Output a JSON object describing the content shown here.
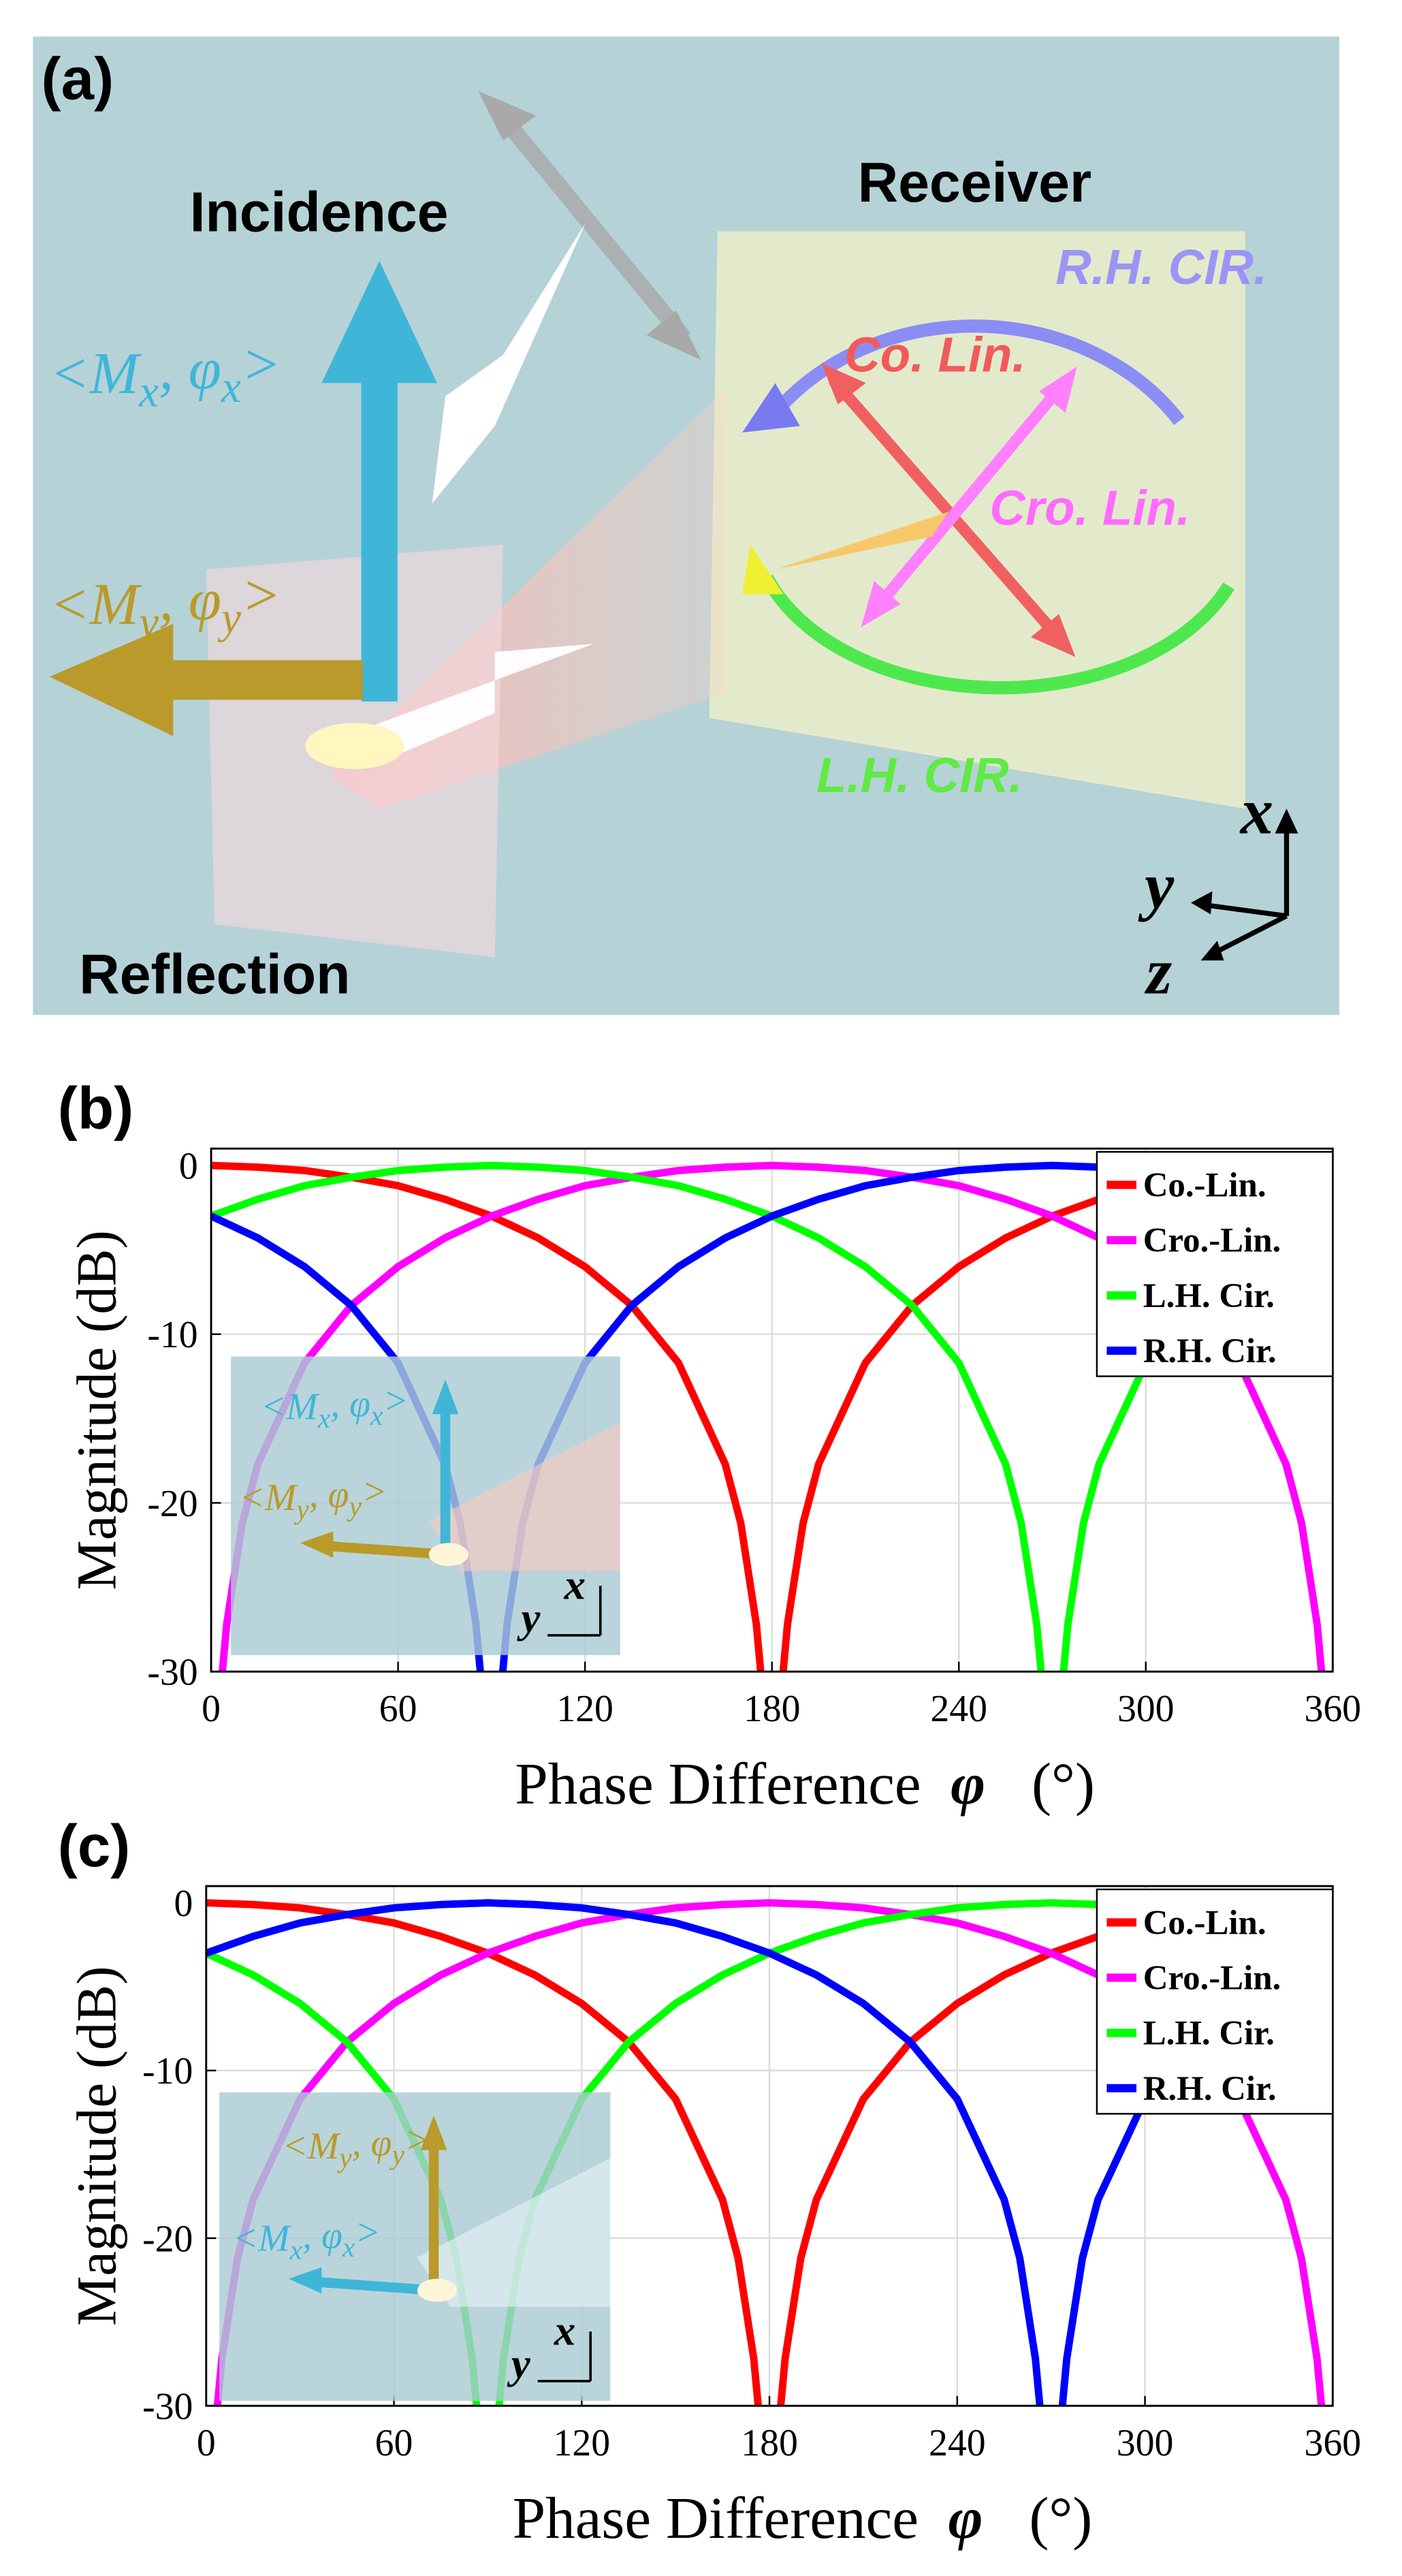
{
  "diagram": {
    "panel_label": "(a)",
    "incidence": "Incidence",
    "receiver": "Receiver",
    "reflection": "Reflection",
    "rh_cir": "R.H. CIR.",
    "co_lin": "Co. Lin.",
    "cro_lin": "Cro. Lin.",
    "lh_cir": "L.H. CIR.",
    "mx": [
      {
        "text": "<M"
      },
      {
        "text": "x",
        "sub": true
      },
      {
        "text": ", φ"
      },
      {
        "text": "x",
        "sub": true
      },
      {
        "text": ">"
      }
    ],
    "my": [
      {
        "text": "<M"
      },
      {
        "text": "y",
        "sub": true
      },
      {
        "text": ", φ"
      },
      {
        "text": "y",
        "sub": true
      },
      {
        "text": ">"
      }
    ],
    "axes": [
      "x",
      "y",
      "z"
    ]
  },
  "chart_data": [
    {
      "type": "line",
      "panel_label": "(b)",
      "y_label": "Magnitude (dB)",
      "x_label": "Phase Difference",
      "x_symbol": "φ",
      "x_unit": "(°)",
      "xlim": [
        0,
        360
      ],
      "xticks": [
        0,
        60,
        120,
        180,
        240,
        300,
        360
      ],
      "ylim": [
        -30,
        1
      ],
      "yticks": [
        -30,
        -20,
        -10,
        0
      ],
      "grid": true,
      "legend": "upper right",
      "series": [
        {
          "name": "Co.-Lin.",
          "color": "#ff0000",
          "x": [
            0,
            15,
            30,
            45,
            60,
            75,
            90,
            105,
            120,
            135,
            150,
            165,
            170,
            175,
            176.4,
            180,
            183.6,
            185,
            190,
            195,
            210,
            225,
            240,
            255,
            270,
            285,
            300,
            315,
            330,
            345,
            360
          ],
          "values": [
            0,
            -0.1,
            -0.3,
            -0.7,
            -1.2,
            -2.0,
            -3.0,
            -4.3,
            -6.0,
            -8.3,
            -11.7,
            -17.7,
            -21.2,
            -27.2,
            -30,
            null,
            -30,
            -27.2,
            -21.2,
            -17.7,
            -11.7,
            -8.3,
            -6.0,
            -4.3,
            -3.0,
            -2.0,
            -1.2,
            -0.7,
            -0.3,
            -0.1,
            0
          ]
        },
        {
          "name": "Cro.-Lin.",
          "color": "#ff00ff",
          "x": [
            0,
            3.6,
            5,
            10,
            15,
            30,
            45,
            60,
            75,
            90,
            105,
            120,
            135,
            150,
            165,
            180,
            195,
            210,
            225,
            240,
            255,
            270,
            285,
            300,
            315,
            330,
            345,
            350,
            355,
            356.4,
            360
          ],
          "values": [
            null,
            -30,
            -27.2,
            -21.2,
            -17.7,
            -11.7,
            -8.3,
            -6.0,
            -4.3,
            -3.0,
            -2.0,
            -1.2,
            -0.7,
            -0.3,
            -0.1,
            0,
            -0.1,
            -0.3,
            -0.7,
            -1.2,
            -2.0,
            -3.0,
            -4.3,
            -6.0,
            -8.3,
            -11.7,
            -17.7,
            -21.2,
            -27.2,
            -30,
            null
          ]
        },
        {
          "name": "L.H. Cir.",
          "color": "#00ff00",
          "x": [
            0,
            15,
            30,
            45,
            60,
            75,
            90,
            105,
            120,
            135,
            150,
            165,
            180,
            195,
            210,
            225,
            240,
            255,
            260,
            265,
            266.4,
            270,
            273.6,
            275,
            280,
            285,
            300,
            315,
            330,
            345,
            360
          ],
          "values": [
            -3.0,
            -2.0,
            -1.2,
            -0.7,
            -0.3,
            -0.1,
            0,
            -0.1,
            -0.3,
            -0.7,
            -1.2,
            -2.0,
            -3.0,
            -4.3,
            -6.0,
            -8.3,
            -11.7,
            -17.7,
            -21.2,
            -27.2,
            -30,
            null,
            -30,
            -27.2,
            -21.2,
            -17.7,
            -11.7,
            -8.3,
            -6.0,
            -4.3,
            -3.0
          ]
        },
        {
          "name": "R.H. Cir.",
          "color": "#0000ff",
          "x": [
            0,
            15,
            30,
            45,
            60,
            75,
            80,
            85,
            86.4,
            90,
            93.6,
            95,
            100,
            105,
            120,
            135,
            150,
            165,
            180,
            195,
            210,
            225,
            240,
            255,
            270,
            285,
            300,
            315,
            330,
            345,
            360
          ],
          "values": [
            -3.0,
            -4.3,
            -6.0,
            -8.3,
            -11.7,
            -17.7,
            -21.2,
            -27.2,
            -30,
            null,
            -30,
            -27.2,
            -21.2,
            -17.7,
            -11.7,
            -8.3,
            -6.0,
            -4.3,
            -3.0,
            -2.0,
            -1.2,
            -0.7,
            -0.3,
            -0.1,
            0,
            -0.1,
            -0.3,
            -0.7,
            -1.2,
            -2.0,
            -3.0
          ]
        }
      ],
      "inset": {
        "labels": [
          [
            {
              "text": "<M"
            },
            {
              "text": "x",
              "sub": true
            },
            {
              "text": ", φ"
            },
            {
              "text": "x",
              "sub": true
            },
            {
              "text": ">"
            }
          ],
          [
            {
              "text": "<M"
            },
            {
              "text": "y",
              "sub": true
            },
            {
              "text": ", φ"
            },
            {
              "text": "y",
              "sub": true
            },
            {
              "text": ">"
            }
          ]
        ],
        "axes": [
          "x",
          "y"
        ]
      }
    },
    {
      "type": "line",
      "panel_label": "(c)",
      "y_label": "Magnitude (dB)",
      "x_label": "Phase Difference",
      "x_symbol": "φ",
      "x_unit": "(°)",
      "xlim": [
        0,
        360
      ],
      "xticks": [
        0,
        60,
        120,
        180,
        240,
        300,
        360
      ],
      "ylim": [
        -30,
        1
      ],
      "yticks": [
        -30,
        -20,
        -10,
        0
      ],
      "grid": true,
      "legend": "upper right",
      "series": [
        {
          "name": "Co.-Lin.",
          "color": "#ff0000",
          "x": [
            0,
            15,
            30,
            45,
            60,
            75,
            90,
            105,
            120,
            135,
            150,
            165,
            170,
            175,
            176.4,
            180,
            183.6,
            185,
            190,
            195,
            210,
            225,
            240,
            255,
            270,
            285,
            300,
            315,
            330,
            345,
            360
          ],
          "values": [
            0,
            -0.1,
            -0.3,
            -0.7,
            -1.2,
            -2.0,
            -3.0,
            -4.3,
            -6.0,
            -8.3,
            -11.7,
            -17.7,
            -21.2,
            -27.2,
            -30,
            null,
            -30,
            -27.2,
            -21.2,
            -17.7,
            -11.7,
            -8.3,
            -6.0,
            -4.3,
            -3.0,
            -2.0,
            -1.2,
            -0.7,
            -0.3,
            -0.1,
            0
          ]
        },
        {
          "name": "Cro.-Lin.",
          "color": "#ff00ff",
          "x": [
            0,
            3.6,
            5,
            10,
            15,
            30,
            45,
            60,
            75,
            90,
            105,
            120,
            135,
            150,
            165,
            180,
            195,
            210,
            225,
            240,
            255,
            270,
            285,
            300,
            315,
            330,
            345,
            350,
            355,
            356.4,
            360
          ],
          "values": [
            null,
            -30,
            -27.2,
            -21.2,
            -17.7,
            -11.7,
            -8.3,
            -6.0,
            -4.3,
            -3.0,
            -2.0,
            -1.2,
            -0.7,
            -0.3,
            -0.1,
            0,
            -0.1,
            -0.3,
            -0.7,
            -1.2,
            -2.0,
            -3.0,
            -4.3,
            -6.0,
            -8.3,
            -11.7,
            -17.7,
            -21.2,
            -27.2,
            -30,
            null
          ]
        },
        {
          "name": "L.H. Cir.",
          "color": "#00ff00",
          "x": [
            0,
            15,
            30,
            45,
            60,
            75,
            80,
            85,
            86.4,
            90,
            93.6,
            95,
            100,
            105,
            120,
            135,
            150,
            165,
            180,
            195,
            210,
            225,
            240,
            255,
            270,
            285,
            300,
            315,
            330,
            345,
            360
          ],
          "values": [
            -3.0,
            -4.3,
            -6.0,
            -8.3,
            -11.7,
            -17.7,
            -21.2,
            -27.2,
            -30,
            null,
            -30,
            -27.2,
            -21.2,
            -17.7,
            -11.7,
            -8.3,
            -6.0,
            -4.3,
            -3.0,
            -2.0,
            -1.2,
            -0.7,
            -0.3,
            -0.1,
            0,
            -0.1,
            -0.3,
            -0.7,
            -1.2,
            -2.0,
            -3.0
          ]
        },
        {
          "name": "R.H. Cir.",
          "color": "#0000ff",
          "x": [
            0,
            15,
            30,
            45,
            60,
            75,
            90,
            105,
            120,
            135,
            150,
            165,
            180,
            195,
            210,
            225,
            240,
            255,
            260,
            265,
            266.4,
            270,
            273.6,
            275,
            280,
            285,
            300,
            315,
            330,
            345,
            360
          ],
          "values": [
            -3.0,
            -2.0,
            -1.2,
            -0.7,
            -0.3,
            -0.1,
            0,
            -0.1,
            -0.3,
            -0.7,
            -1.2,
            -2.0,
            -3.0,
            -4.3,
            -6.0,
            -8.3,
            -11.7,
            -17.7,
            -21.2,
            -27.2,
            -30,
            null,
            -30,
            -27.2,
            -21.2,
            -17.7,
            -11.7,
            -8.3,
            -6.0,
            -4.3,
            -3.0
          ]
        }
      ],
      "inset": {
        "labels": [
          [
            {
              "text": "<M"
            },
            {
              "text": "y",
              "sub": true
            },
            {
              "text": ", φ"
            },
            {
              "text": "y",
              "sub": true
            },
            {
              "text": ">"
            }
          ],
          [
            {
              "text": "<M"
            },
            {
              "text": "x",
              "sub": true
            },
            {
              "text": ", φ"
            },
            {
              "text": "x",
              "sub": true
            },
            {
              "text": ">"
            }
          ]
        ],
        "axes": [
          "x",
          "y"
        ]
      }
    }
  ]
}
